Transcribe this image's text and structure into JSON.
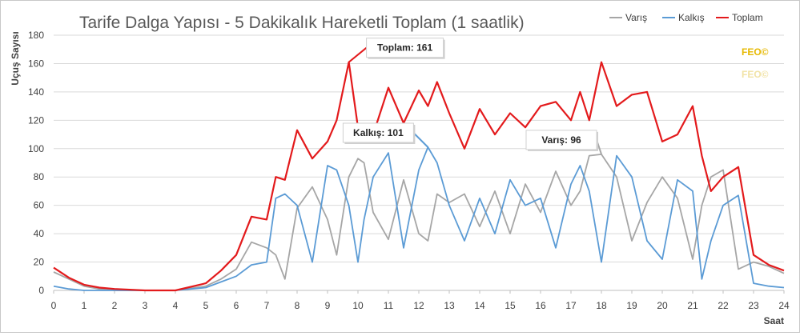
{
  "colors": {
    "varis": "#a6a6a6",
    "kalkis": "#5b9bd5",
    "toplam": "#e31a1c",
    "grid": "#d9d9d9",
    "watermark": "#e6b800",
    "watermark_faded": "#f1e3a6",
    "title": "#595959"
  },
  "chart_data": {
    "type": "line",
    "title": "Tarife Dalga Yapısı - 5 Dakikalık Hareketli Toplam (1 saatlik)",
    "xlabel": "Saat",
    "ylabel": "Uçuş Sayısı",
    "xlim": [
      0,
      24
    ],
    "ylim": [
      0,
      180
    ],
    "x_ticks": [
      "0",
      "1",
      "2",
      "3",
      "4",
      "5",
      "6",
      "7",
      "8",
      "9",
      "10",
      "11",
      "12",
      "13",
      "14",
      "15",
      "16",
      "17",
      "18",
      "19",
      "20",
      "21",
      "22",
      "23",
      "24"
    ],
    "y_ticks": [
      "0",
      "20",
      "40",
      "60",
      "80",
      "100",
      "120",
      "140",
      "160",
      "180"
    ],
    "grid": "horizontal",
    "legend_position": "top-right",
    "watermark": {
      "text": "FEO©",
      "faded_text": "FEO©"
    },
    "series": [
      {
        "name": "Varış",
        "color_key": "varis",
        "x": [
          0,
          0.5,
          1,
          1.5,
          2,
          3,
          4,
          5,
          5.5,
          6,
          6.5,
          7,
          7.3,
          7.6,
          8,
          8.5,
          9,
          9.3,
          9.7,
          10,
          10.2,
          10.5,
          11,
          11.5,
          12,
          12.3,
          12.6,
          13,
          13.5,
          14,
          14.5,
          15,
          15.5,
          16,
          16.5,
          17,
          17.3,
          17.6,
          18,
          18.5,
          19,
          19.5,
          20,
          20.5,
          21,
          21.3,
          21.6,
          22,
          22.5,
          23,
          23.5,
          24
        ],
        "values": [
          13,
          8,
          3,
          1,
          0,
          0,
          0,
          3,
          8,
          15,
          34,
          30,
          25,
          8,
          58,
          73,
          50,
          25,
          80,
          93,
          90,
          55,
          36,
          78,
          40,
          35,
          68,
          62,
          68,
          45,
          70,
          40,
          75,
          55,
          84,
          60,
          70,
          95,
          96,
          80,
          35,
          62,
          80,
          65,
          22,
          60,
          80,
          85,
          15,
          20,
          17,
          12
        ]
      },
      {
        "name": "Kalkış",
        "color_key": "kalkis",
        "x": [
          0,
          0.5,
          1,
          1.5,
          2,
          3,
          4,
          5,
          5.5,
          6,
          6.5,
          7,
          7.3,
          7.6,
          8,
          8.5,
          9,
          9.3,
          9.7,
          10,
          10.2,
          10.5,
          11,
          11.5,
          12,
          12.3,
          12.6,
          13,
          13.5,
          14,
          14.5,
          15,
          15.5,
          16,
          16.5,
          17,
          17.3,
          17.6,
          18,
          18.5,
          19,
          19.5,
          20,
          20.5,
          21,
          21.3,
          21.6,
          22,
          22.5,
          23,
          23.5,
          24
        ],
        "values": [
          3,
          1,
          0,
          0,
          0,
          0,
          0,
          2,
          6,
          10,
          18,
          20,
          65,
          68,
          60,
          20,
          88,
          85,
          60,
          20,
          50,
          80,
          97,
          30,
          85,
          101,
          90,
          60,
          35,
          65,
          40,
          78,
          60,
          65,
          30,
          75,
          88,
          70,
          20,
          95,
          80,
          35,
          22,
          78,
          70,
          8,
          35,
          60,
          67,
          5,
          3,
          2
        ]
      },
      {
        "name": "Toplam",
        "color_key": "toplam",
        "x": [
          0,
          0.5,
          1,
          1.5,
          2,
          3,
          4,
          5,
          5.5,
          6,
          6.5,
          7,
          7.3,
          7.6,
          8,
          8.5,
          9,
          9.3,
          9.7,
          10,
          10.2,
          10.5,
          11,
          11.5,
          12,
          12.3,
          12.6,
          13,
          13.5,
          14,
          14.5,
          15,
          15.5,
          16,
          16.5,
          17,
          17.3,
          17.6,
          18,
          18.5,
          19,
          19.5,
          20,
          20.5,
          21,
          21.3,
          21.6,
          22,
          22.5,
          23,
          23.5,
          24
        ],
        "values": [
          16,
          9,
          4,
          2,
          1,
          0,
          0,
          5,
          14,
          25,
          52,
          50,
          80,
          78,
          113,
          93,
          105,
          120,
          161,
          115,
          105,
          110,
          143,
          118,
          141,
          130,
          147,
          125,
          100,
          128,
          110,
          125,
          115,
          130,
          133,
          120,
          140,
          120,
          161,
          130,
          138,
          140,
          105,
          110,
          130,
          95,
          70,
          80,
          87,
          25,
          18,
          14
        ]
      }
    ],
    "annotations": [
      {
        "text": "Toplam: 161",
        "series": "Toplam",
        "x": 9.7,
        "y": 161
      },
      {
        "text": "Kalkış: 101",
        "series": "Kalkış",
        "x": 12.3,
        "y": 101
      },
      {
        "text": "Varış: 96",
        "series": "Varış",
        "x": 18.0,
        "y": 96
      }
    ]
  }
}
